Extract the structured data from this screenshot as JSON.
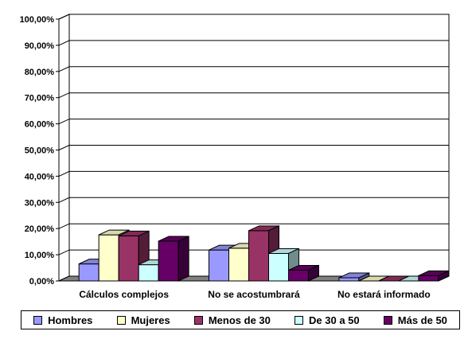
{
  "chart_data": {
    "type": "bar",
    "categories": [
      "Cálculos complejos",
      "No se acostumbrará",
      "No estará informado"
    ],
    "series": [
      {
        "name": "Hombres",
        "color": "#9999FF",
        "values": [
          6.5,
          11.8,
          1.2
        ]
      },
      {
        "name": "Mujeres",
        "color": "#FFFFCC",
        "values": [
          17.6,
          12.5,
          0
        ]
      },
      {
        "name": "Menos de 30",
        "color": "#993366",
        "values": [
          17.2,
          19.2,
          0
        ]
      },
      {
        "name": "De 30 a 50",
        "color": "#CCFFFF",
        "values": [
          6.2,
          10.5,
          0
        ]
      },
      {
        "name": "Más de 50",
        "color": "#660066",
        "values": [
          15.2,
          4.1,
          2.0
        ]
      }
    ],
    "y_ticks": [
      "0,00%",
      "10,00%",
      "20,00%",
      "30,00%",
      "40,00%",
      "50,00%",
      "60,00%",
      "70,00%",
      "80,00%",
      "90,00%",
      "100,00%"
    ],
    "ylim": [
      0,
      100
    ],
    "grid": true,
    "legend_position": "bottom",
    "title": "",
    "xlabel": "",
    "ylabel": ""
  }
}
